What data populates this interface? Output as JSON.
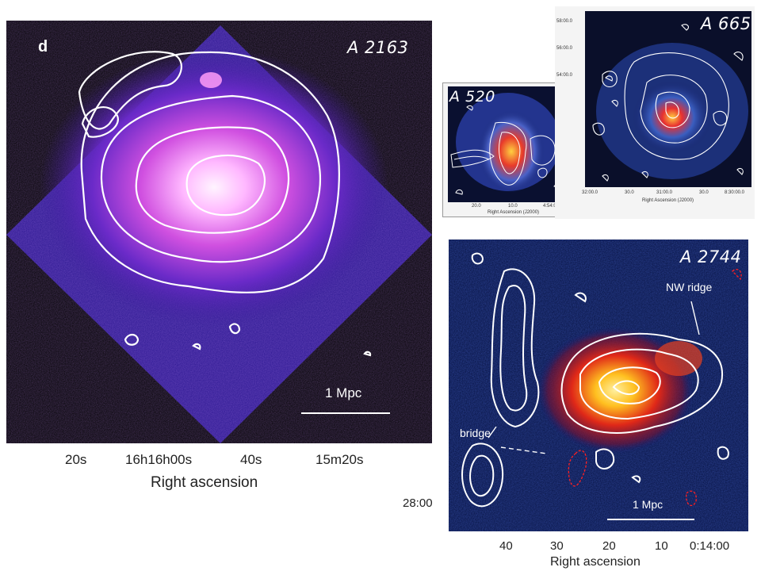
{
  "panels": {
    "a2163": {
      "name": "A 2163",
      "letter": "d",
      "scale_label": "1 Mpc",
      "x_ticks": [
        "20s",
        "16h16h00s",
        "40s",
        "15m20s"
      ],
      "x_title": "Right ascension"
    },
    "a520": {
      "name": "A 520",
      "x_ticks": [
        "20.0",
        "10.0",
        "4:54:00.0"
      ],
      "x_title": "Right Ascension (J2000)"
    },
    "a665": {
      "name": "A 665",
      "x_ticks": [
        "32:00.0",
        "30.0",
        "31:00.0",
        "30.0",
        "8:30:00.0"
      ],
      "y_ticks": [
        "58:00.0",
        "56:00.0",
        "54:00.0"
      ],
      "x_title": "Right Ascension (J2000)"
    },
    "a2744": {
      "name": "A 2744",
      "annotations": {
        "nw_ridge": "NW ridge",
        "bridge": "bridge"
      },
      "scale_label": "1 Mpc",
      "y_tick": "28:00",
      "x_ticks": [
        "40",
        "30",
        "20",
        "10",
        "0:14:00"
      ],
      "x_title": "Right ascension"
    }
  },
  "colors": {
    "contour": "#ffffff",
    "a2163_core": "#ffe6ff",
    "a2163_mid": "#c040d8",
    "a2163_bg": "#3a1a9a",
    "a2744_core": "#ffe040",
    "a2744_mid": "#e02818",
    "a2744_bg": "#0b1a7a",
    "negative_contour": "#ff2020"
  }
}
